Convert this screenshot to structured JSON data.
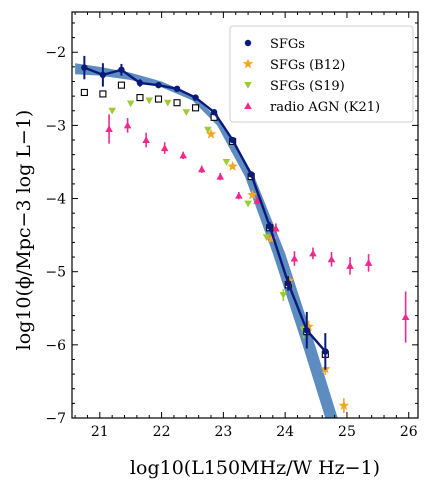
{
  "chart_data": {
    "type": "scatter",
    "xlabel": "log10(L150MHz/W Hz−1)",
    "ylabel": "log10(ϕ/Mpc−3 log L−1)",
    "xlim": [
      20.55,
      26.15
    ],
    "ylim": [
      -7.0,
      -1.45
    ],
    "xticks": [
      21,
      22,
      23,
      24,
      25,
      26
    ],
    "yticks": [
      -7,
      -6,
      -5,
      -4,
      -3,
      -2
    ],
    "grid": false,
    "legend_position": "top-right",
    "legend": [
      {
        "label": "SFGs",
        "marker": "circle",
        "color": "#0a1a7a"
      },
      {
        "label": "SFGs (B12)",
        "marker": "star",
        "color": "#f5a623"
      },
      {
        "label": "SFGs (S19)",
        "marker": "triangle-down",
        "color": "#9ccc30"
      },
      {
        "label": "radio AGN (K21)",
        "marker": "triangle-up",
        "color": "#ee2a8e"
      }
    ],
    "series": [
      {
        "name": "SFGs",
        "style": "line-with-errorbars",
        "color": "#0a1a7a",
        "points": [
          {
            "x": 20.75,
            "y": -2.21,
            "err": [
              0.16,
              0.16
            ]
          },
          {
            "x": 21.05,
            "y": -2.31,
            "err": [
              0.16,
              0.16
            ]
          },
          {
            "x": 21.35,
            "y": -2.24,
            "err": [
              0.08,
              0.08
            ]
          },
          {
            "x": 21.65,
            "y": -2.42,
            "err": [
              0.05,
              0.05
            ]
          },
          {
            "x": 21.95,
            "y": -2.45,
            "err": [
              0.04,
              0.04
            ]
          },
          {
            "x": 22.25,
            "y": -2.5,
            "err": [
              0.03,
              0.03
            ]
          },
          {
            "x": 22.55,
            "y": -2.62,
            "err": [
              0.03,
              0.03
            ]
          },
          {
            "x": 22.85,
            "y": -2.82,
            "err": [
              0.03,
              0.03
            ]
          },
          {
            "x": 23.15,
            "y": -3.2,
            "err": [
              0.03,
              0.03
            ]
          },
          {
            "x": 23.45,
            "y": -3.67,
            "err": [
              0.04,
              0.04
            ]
          },
          {
            "x": 23.75,
            "y": -4.38,
            "err": [
              0.06,
              0.06
            ]
          },
          {
            "x": 24.05,
            "y": -5.16,
            "err": [
              0.1,
              0.1
            ]
          },
          {
            "x": 24.35,
            "y": -5.8,
            "err": [
              0.25,
              0.25
            ]
          },
          {
            "x": 24.65,
            "y": -6.09,
            "err": [
              0.25,
              0.25
            ]
          }
        ]
      },
      {
        "name": "open squares",
        "style": "marker",
        "marker": "open-square",
        "color": "#000000",
        "points": [
          {
            "x": 20.75,
            "y": -2.55
          },
          {
            "x": 21.05,
            "y": -2.57
          },
          {
            "x": 21.35,
            "y": -2.45
          },
          {
            "x": 21.65,
            "y": -2.62
          },
          {
            "x": 21.95,
            "y": -2.64
          },
          {
            "x": 22.25,
            "y": -2.69
          },
          {
            "x": 22.55,
            "y": -2.76
          },
          {
            "x": 22.85,
            "y": -2.89
          },
          {
            "x": 23.15,
            "y": -3.22
          },
          {
            "x": 23.45,
            "y": -3.7
          },
          {
            "x": 23.75,
            "y": -4.4
          },
          {
            "x": 24.05,
            "y": -5.18
          },
          {
            "x": 24.35,
            "y": -5.82
          },
          {
            "x": 24.65,
            "y": -6.13
          }
        ]
      },
      {
        "name": "SFGs (B12)",
        "style": "marker",
        "marker": "star",
        "color": "#f5a623",
        "points": [
          {
            "x": 22.8,
            "y": -3.12
          },
          {
            "x": 23.15,
            "y": -3.56
          },
          {
            "x": 23.47,
            "y": -3.95
          },
          {
            "x": 23.78,
            "y": -4.55
          },
          {
            "x": 24.07,
            "y": -5.12
          },
          {
            "x": 24.38,
            "y": -5.75
          },
          {
            "x": 24.65,
            "y": -6.33
          },
          {
            "x": 24.95,
            "y": -6.83
          }
        ],
        "errors": [
          0,
          0,
          0,
          0,
          0.05,
          0.08,
          0.08,
          0.1
        ]
      },
      {
        "name": "SFGs (S19)",
        "style": "marker",
        "marker": "triangle-down",
        "color": "#9ccc30",
        "points": [
          {
            "x": 21.2,
            "y": -2.8
          },
          {
            "x": 21.5,
            "y": -2.7
          },
          {
            "x": 21.8,
            "y": -2.66
          },
          {
            "x": 22.1,
            "y": -2.69
          },
          {
            "x": 22.4,
            "y": -2.82
          },
          {
            "x": 22.75,
            "y": -3.06
          },
          {
            "x": 23.05,
            "y": -3.5
          },
          {
            "x": 23.4,
            "y": -4.07
          },
          {
            "x": 23.7,
            "y": -4.53
          },
          {
            "x": 23.97,
            "y": -5.32
          },
          {
            "x": 24.3,
            "y": -5.79
          }
        ],
        "errors": [
          0,
          0,
          0,
          0,
          0,
          0,
          0,
          0,
          0,
          0.08,
          0.12
        ]
      },
      {
        "name": "radio AGN (K21)",
        "style": "marker",
        "marker": "triangle-up",
        "color": "#ee2a8e",
        "points": [
          {
            "x": 21.15,
            "y": -3.05
          },
          {
            "x": 21.45,
            "y": -3.0
          },
          {
            "x": 21.75,
            "y": -3.2
          },
          {
            "x": 22.05,
            "y": -3.31
          },
          {
            "x": 22.35,
            "y": -3.41
          },
          {
            "x": 22.65,
            "y": -3.6
          },
          {
            "x": 22.95,
            "y": -3.7
          },
          {
            "x": 23.25,
            "y": -3.96
          },
          {
            "x": 23.55,
            "y": -4.03
          },
          {
            "x": 23.85,
            "y": -4.41
          },
          {
            "x": 24.15,
            "y": -4.82
          },
          {
            "x": 24.45,
            "y": -4.75
          },
          {
            "x": 24.75,
            "y": -4.83
          },
          {
            "x": 25.05,
            "y": -4.92
          },
          {
            "x": 25.35,
            "y": -4.88
          },
          {
            "x": 25.95,
            "y": -5.62
          }
        ],
        "errors": [
          0.2,
          0.1,
          0.1,
          0.08,
          0.05,
          0.05,
          0.05,
          0.05,
          0.05,
          0.07,
          0.1,
          0.08,
          0.1,
          0.12,
          0.12,
          0.35
        ]
      },
      {
        "name": "model band",
        "style": "band",
        "color": "#3f78b5",
        "upper": [
          {
            "x": 20.6,
            "y": -2.15
          },
          {
            "x": 21.0,
            "y": -2.2
          },
          {
            "x": 21.5,
            "y": -2.28
          },
          {
            "x": 22.0,
            "y": -2.4
          },
          {
            "x": 22.5,
            "y": -2.58
          },
          {
            "x": 23.0,
            "y": -2.98
          },
          {
            "x": 23.5,
            "y": -3.7
          },
          {
            "x": 24.0,
            "y": -4.75
          },
          {
            "x": 24.5,
            "y": -6.05
          },
          {
            "x": 24.85,
            "y": -7.0
          }
        ],
        "lower": [
          {
            "x": 24.65,
            "y": -7.0
          },
          {
            "x": 24.3,
            "y": -6.05
          },
          {
            "x": 23.8,
            "y": -4.75
          },
          {
            "x": 23.35,
            "y": -3.7
          },
          {
            "x": 22.9,
            "y": -3.0
          },
          {
            "x": 22.5,
            "y": -2.66
          },
          {
            "x": 22.0,
            "y": -2.48
          },
          {
            "x": 21.5,
            "y": -2.38
          },
          {
            "x": 21.0,
            "y": -2.32
          },
          {
            "x": 20.6,
            "y": -2.3
          }
        ]
      }
    ]
  }
}
